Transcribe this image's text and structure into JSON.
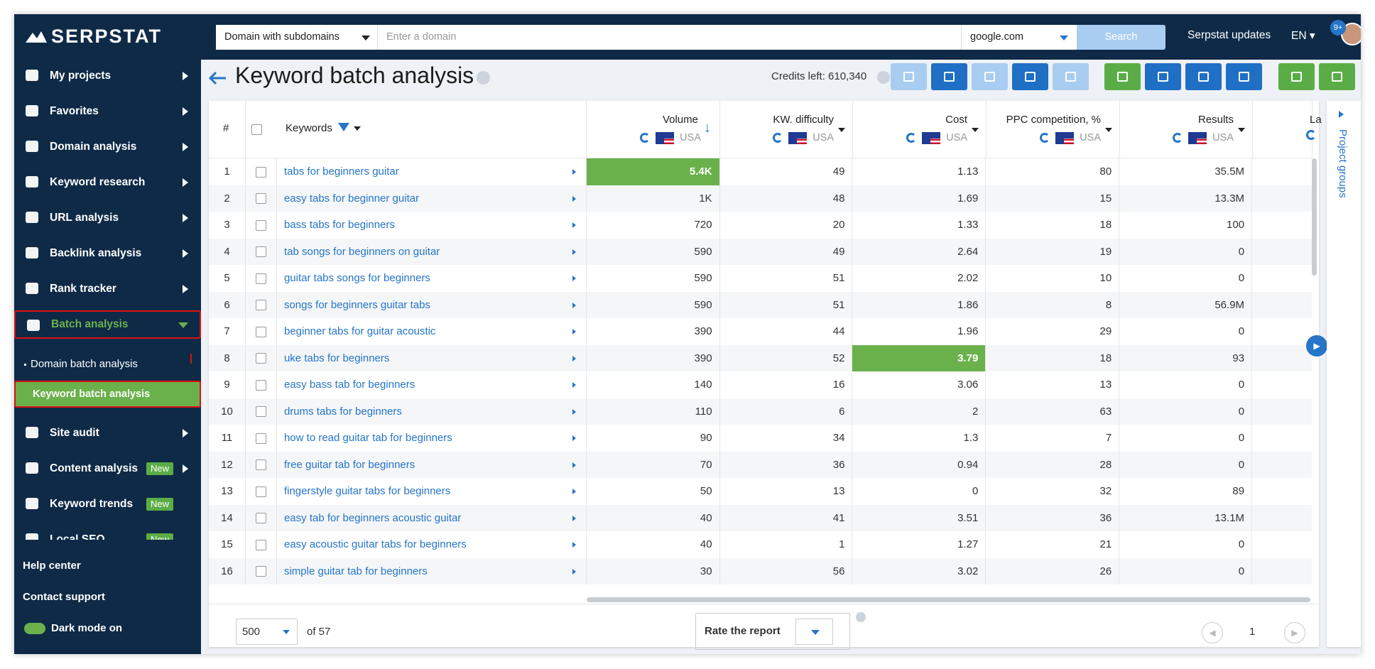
{
  "sidebar": {
    "logo": "SERPSTAT",
    "menu": [
      "My projects",
      "Favorites",
      "Domain analysis",
      "Keyword research",
      "URL analysis",
      "Backlink analysis",
      "Rank tracker",
      "Batch analysis"
    ],
    "submenu": [
      "Domain batch analysis",
      "Keyword batch analysis"
    ],
    "menu2": [
      {
        "label": "Site audit"
      },
      {
        "label": "Content analysis",
        "badge": "New"
      },
      {
        "label": "Keyword trends",
        "badge": "New"
      },
      {
        "label": "Local SEO",
        "badge": "New"
      }
    ],
    "links": [
      "Help center",
      "Contact support",
      "Dark mode on"
    ]
  },
  "topbar": {
    "search_type": "Domain with subdomains",
    "placeholder": "Enter a domain",
    "engine": "google.com",
    "search_button": "Search",
    "updates": "Serpstat updates",
    "language": "EN",
    "notifications": "9+"
  },
  "header": {
    "title": "Keyword batch analysis",
    "credits": "Credits left: 610,340"
  },
  "table": {
    "columns": [
      "#",
      "Keywords",
      "Volume",
      "KW. difficulty",
      "Cost",
      "PPC competition, %",
      "Results",
      "La"
    ],
    "region": "USA",
    "rows": [
      [
        "1",
        "tabs for beginners guitar",
        "5.4K",
        "49",
        "1.13",
        "80",
        "35.5M"
      ],
      [
        "2",
        "easy tabs for beginner guitar",
        "1K",
        "48",
        "1.69",
        "15",
        "13.3M"
      ],
      [
        "3",
        "bass tabs for beginners",
        "720",
        "20",
        "1.33",
        "18",
        "100"
      ],
      [
        "4",
        "tab songs for beginners on guitar",
        "590",
        "49",
        "2.64",
        "19",
        "0"
      ],
      [
        "5",
        "guitar tabs songs for beginners",
        "590",
        "51",
        "2.02",
        "10",
        "0"
      ],
      [
        "6",
        "songs for beginners guitar tabs",
        "590",
        "51",
        "1.86",
        "8",
        "56.9M"
      ],
      [
        "7",
        "beginner tabs for guitar acoustic",
        "390",
        "44",
        "1.96",
        "29",
        "0"
      ],
      [
        "8",
        "uke tabs for beginners",
        "390",
        "52",
        "3.79",
        "18",
        "93"
      ],
      [
        "9",
        "easy bass tab for beginners",
        "140",
        "16",
        "3.06",
        "13",
        "0"
      ],
      [
        "10",
        "drums tabs for beginners",
        "110",
        "6",
        "2",
        "63",
        "0"
      ],
      [
        "11",
        "how to read guitar tab for beginners",
        "90",
        "34",
        "1.3",
        "7",
        "0"
      ],
      [
        "12",
        "free guitar tab for beginners",
        "70",
        "36",
        "0.94",
        "28",
        "0"
      ],
      [
        "13",
        "fingerstyle guitar tabs for beginners",
        "50",
        "13",
        "0",
        "32",
        "89"
      ],
      [
        "14",
        "easy tab for beginners acoustic guitar",
        "40",
        "41",
        "3.51",
        "36",
        "13.1M"
      ],
      [
        "15",
        "easy acoustic guitar tabs for beginners",
        "40",
        "1",
        "1.27",
        "21",
        "0"
      ],
      [
        "16",
        "simple guitar tab for beginners",
        "30",
        "56",
        "3.02",
        "26",
        "0"
      ]
    ]
  },
  "footer": {
    "page_size": "500",
    "total": "of 57",
    "rate": "Rate the report",
    "page": "1"
  },
  "side_panel": "Project groups"
}
